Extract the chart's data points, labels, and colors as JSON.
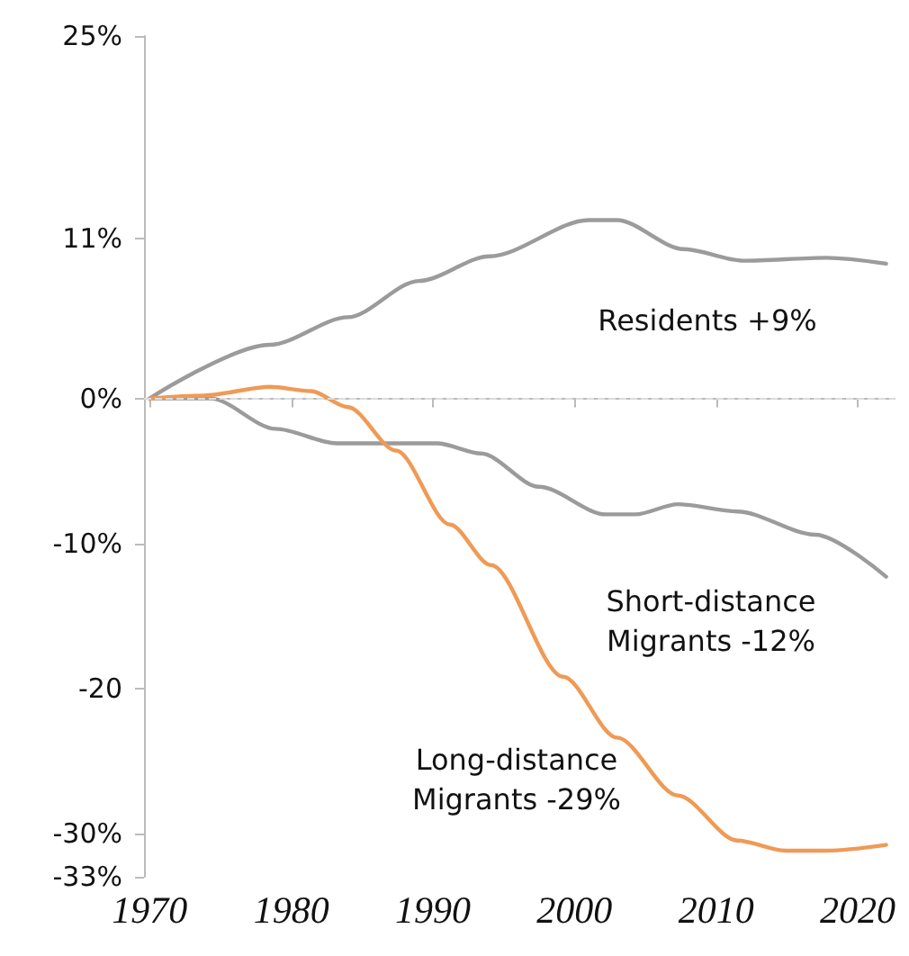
{
  "chart_data": {
    "type": "line",
    "xlim": [
      1969.6,
      2022.6
    ],
    "xticks": [
      1970,
      1980,
      1990,
      2000,
      2010,
      2020
    ],
    "ylim": [
      -33,
      25
    ],
    "yticks": [
      {
        "value": 25,
        "label": "25%"
      },
      {
        "value": 11,
        "label": "11%"
      },
      {
        "value": 0,
        "label": "0%"
      },
      {
        "value": -10,
        "label": "-10%"
      },
      {
        "value": -20,
        "label": "-20"
      },
      {
        "value": -30,
        "label": "-30%"
      },
      {
        "value": -33,
        "label": "-33%"
      }
    ],
    "series": [
      {
        "color": "#9b9b9b",
        "x": [
          1970,
          1978.5,
          1984,
          1989,
          1994,
          2001,
          2003,
          2007.7,
          2011.9,
          2017.8,
          2022
        ],
        "values": [
          0,
          3.7,
          5.6,
          8.1,
          9.8,
          12.3,
          12.3,
          10.3,
          9.5,
          9.7,
          9.3
        ]
      },
      {
        "color": "#9b9b9b",
        "x": [
          1970,
          1974.3,
          1978.9,
          1983.2,
          1990.3,
          1993.4,
          1997.5,
          2002.2,
          2004.3,
          2007.3,
          2011.5,
          2017,
          2022
        ],
        "values": [
          0,
          0,
          -2.1,
          -3.1,
          -3.1,
          -3.8,
          -6.1,
          -8.0,
          -8.0,
          -7.3,
          -7.8,
          -9.4,
          -12.3
        ]
      },
      {
        "color": "#ef9a55",
        "x": [
          1970,
          1973.8,
          1978.5,
          1981.4,
          1984,
          1987.4,
          1991.2,
          1994.1,
          1999.2,
          2003,
          2007.3,
          2011.5,
          2014.9,
          2017.8,
          2022
        ],
        "values": [
          0,
          0.2,
          0.8,
          0.5,
          -0.6,
          -3.6,
          -8.7,
          -11.5,
          -19.2,
          -23.4,
          -27.4,
          -30.5,
          -31.2,
          -31.2,
          -30.8
        ]
      }
    ],
    "ref_lines": [
      {
        "axis": "y",
        "value": 0,
        "color": "#dcdcdc",
        "line_style": "dashed"
      }
    ],
    "annotations": [
      "Residents +9%",
      "Short-distance\nMigrants -12%",
      "Long-distance\nMigrants -29%"
    ],
    "grid": false,
    "marker": "none",
    "line_style": "solid"
  }
}
